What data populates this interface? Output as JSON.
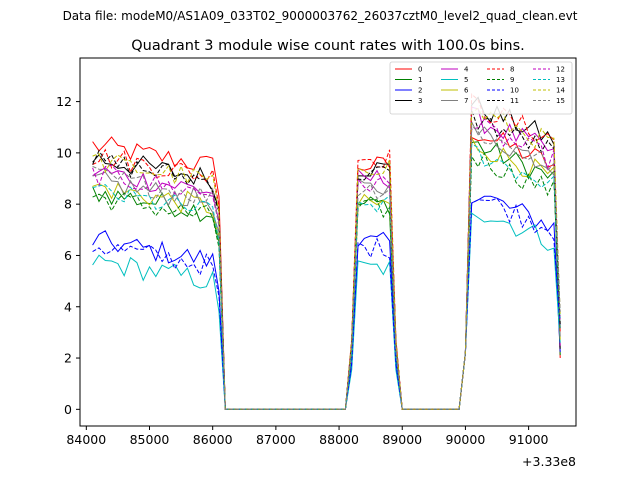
{
  "figure": {
    "suptitle": "Data file: modeM0/AS1A09_033T02_9000003762_26037cztM0_level2_quad_clean.evt"
  },
  "chart_data": {
    "type": "line",
    "title": "Quadrant 3 module wise count rates with 100.0s bins.",
    "xlabel": "",
    "ylabel": "",
    "x_offset_label": "+3.33e8",
    "xlim": [
      83900,
      91750
    ],
    "ylim": [
      -0.65,
      13.7
    ],
    "x_ticks": [
      84000,
      85000,
      86000,
      87000,
      88000,
      89000,
      90000,
      91000
    ],
    "x_tick_labels": [
      "84000",
      "85000",
      "86000",
      "87000",
      "88000",
      "89000",
      "90000",
      "91000"
    ],
    "y_ticks": [
      0,
      2,
      4,
      6,
      8,
      10,
      12
    ],
    "y_tick_labels": [
      "0",
      "2",
      "4",
      "6",
      "8",
      "10",
      "12"
    ],
    "grid": false,
    "legend_position": "top-right",
    "legend_columns": 4,
    "segments": [
      {
        "x0": 84100,
        "step": 100,
        "n": 22
      },
      {
        "x0": 86300,
        "step": 100,
        "n": 19
      },
      {
        "x0": 88200,
        "step": 100,
        "n": 8
      },
      {
        "x0": 89000,
        "step": 100,
        "n": 10
      },
      {
        "x0": 90000,
        "step": 100,
        "n": 16
      }
    ],
    "series": [
      {
        "name": "0",
        "color": "#ff0000",
        "dash": false,
        "levels": [
          10.0,
          9.5,
          10.0
        ]
      },
      {
        "name": "1",
        "color": "#008000",
        "dash": false,
        "levels": [
          8.2,
          8.0,
          9.5
        ]
      },
      {
        "name": "2",
        "color": "#0000ff",
        "dash": false,
        "levels": [
          6.3,
          6.5,
          7.6
        ]
      },
      {
        "name": "3",
        "color": "#000000",
        "dash": false,
        "levels": [
          9.5,
          9.4,
          11.0
        ]
      },
      {
        "name": "4",
        "color": "#bf00bf",
        "dash": false,
        "levels": [
          9.0,
          9.0,
          10.5
        ]
      },
      {
        "name": "5",
        "color": "#00bfbf",
        "dash": false,
        "levels": [
          5.5,
          5.5,
          7.0
        ]
      },
      {
        "name": "6",
        "color": "#bfbf00",
        "dash": false,
        "levels": [
          8.4,
          8.0,
          9.5
        ]
      },
      {
        "name": "7",
        "color": "#808080",
        "dash": false,
        "levels": [
          8.6,
          8.6,
          10.0
        ]
      },
      {
        "name": "8",
        "color": "#ff0000",
        "dash": true,
        "levels": [
          9.6,
          9.8,
          11.0
        ]
      },
      {
        "name": "9",
        "color": "#008000",
        "dash": true,
        "levels": [
          8.0,
          7.8,
          9.0
        ]
      },
      {
        "name": "10",
        "color": "#0000ff",
        "dash": true,
        "levels": [
          6.1,
          6.3,
          7.5
        ]
      },
      {
        "name": "11",
        "color": "#000000",
        "dash": true,
        "levels": [
          9.4,
          9.2,
          10.5
        ]
      },
      {
        "name": "12",
        "color": "#bf00bf",
        "dash": true,
        "levels": [
          8.9,
          8.8,
          10.2
        ]
      },
      {
        "name": "13",
        "color": "#00bfbf",
        "dash": true,
        "levels": [
          8.2,
          8.0,
          9.2
        ]
      },
      {
        "name": "14",
        "color": "#bfbf00",
        "dash": true,
        "levels": [
          9.4,
          9.5,
          10.8
        ]
      },
      {
        "name": "15",
        "color": "#808080",
        "dash": true,
        "levels": [
          8.8,
          8.6,
          10.0
        ]
      }
    ]
  }
}
